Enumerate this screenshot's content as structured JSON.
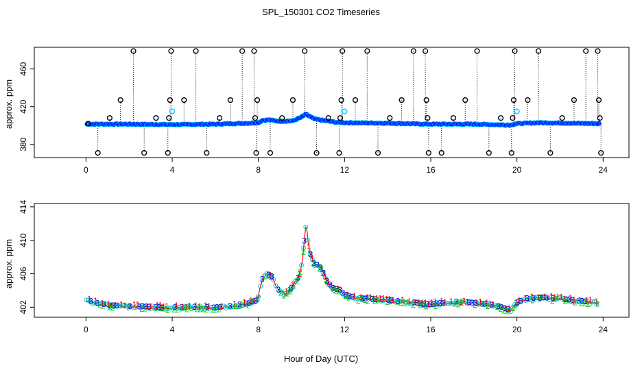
{
  "figure": {
    "title": "SPL_150301  CO2 Timeseries",
    "xlabel": "Hour of Day (UTC)"
  },
  "chart_data": [
    {
      "type": "scatter",
      "panel": "top",
      "title": "SPL_150301  CO2 Timeseries",
      "xlabel": "",
      "ylabel": "approx. ppm",
      "xlim": [
        -2.4,
        25.2
      ],
      "ylim": [
        366,
        483
      ],
      "xticks": [
        0,
        4,
        8,
        12,
        16,
        20,
        24
      ],
      "yticks": [
        380,
        420,
        460
      ],
      "grid": false,
      "baseline": [
        {
          "x": 0.0,
          "y": 401.5
        },
        {
          "x": 2.0,
          "y": 401.5
        },
        {
          "x": 4.0,
          "y": 401.0
        },
        {
          "x": 6.0,
          "y": 401.5
        },
        {
          "x": 7.6,
          "y": 402.5
        },
        {
          "x": 8.0,
          "y": 403.0
        },
        {
          "x": 8.2,
          "y": 405.5
        },
        {
          "x": 8.5,
          "y": 406.0
        },
        {
          "x": 9.0,
          "y": 404.5
        },
        {
          "x": 9.6,
          "y": 405.0
        },
        {
          "x": 10.0,
          "y": 409.0
        },
        {
          "x": 10.2,
          "y": 412.0
        },
        {
          "x": 10.6,
          "y": 407.0
        },
        {
          "x": 11.0,
          "y": 405.5
        },
        {
          "x": 11.6,
          "y": 403.5
        },
        {
          "x": 12.0,
          "y": 403.0
        },
        {
          "x": 14.0,
          "y": 402.5
        },
        {
          "x": 15.8,
          "y": 401.5
        },
        {
          "x": 16.0,
          "y": 401.5
        },
        {
          "x": 18.0,
          "y": 401.5
        },
        {
          "x": 19.7,
          "y": 400.5
        },
        {
          "x": 20.0,
          "y": 402.0
        },
        {
          "x": 21.0,
          "y": 403.0
        },
        {
          "x": 22.5,
          "y": 402.5
        },
        {
          "x": 23.8,
          "y": 402.0
        }
      ],
      "spikes": [
        {
          "x": 0.1,
          "y": 402
        },
        {
          "x": 0.55,
          "y": 371
        },
        {
          "x": 1.1,
          "y": 408
        },
        {
          "x": 1.6,
          "y": 427
        },
        {
          "x": 2.2,
          "y": 479
        },
        {
          "x": 2.7,
          "y": 371
        },
        {
          "x": 3.25,
          "y": 408
        },
        {
          "x": 3.8,
          "y": 371
        },
        {
          "x": 3.85,
          "y": 408
        },
        {
          "x": 3.9,
          "y": 427
        },
        {
          "x": 3.95,
          "y": 479
        },
        {
          "x": 4.55,
          "y": 427
        },
        {
          "x": 5.1,
          "y": 479
        },
        {
          "x": 5.6,
          "y": 371
        },
        {
          "x": 6.2,
          "y": 408
        },
        {
          "x": 6.7,
          "y": 427
        },
        {
          "x": 7.25,
          "y": 479
        },
        {
          "x": 7.8,
          "y": 479
        },
        {
          "x": 7.85,
          "y": 408
        },
        {
          "x": 7.9,
          "y": 371
        },
        {
          "x": 7.95,
          "y": 427
        },
        {
          "x": 8.55,
          "y": 371
        },
        {
          "x": 9.1,
          "y": 408
        },
        {
          "x": 9.6,
          "y": 427
        },
        {
          "x": 10.15,
          "y": 479
        },
        {
          "x": 10.7,
          "y": 371
        },
        {
          "x": 11.25,
          "y": 408
        },
        {
          "x": 11.75,
          "y": 371
        },
        {
          "x": 11.8,
          "y": 408
        },
        {
          "x": 11.85,
          "y": 427
        },
        {
          "x": 11.9,
          "y": 479
        },
        {
          "x": 12.5,
          "y": 427
        },
        {
          "x": 13.05,
          "y": 479
        },
        {
          "x": 13.55,
          "y": 371
        },
        {
          "x": 14.1,
          "y": 408
        },
        {
          "x": 14.65,
          "y": 427
        },
        {
          "x": 15.2,
          "y": 479
        },
        {
          "x": 15.75,
          "y": 479
        },
        {
          "x": 15.8,
          "y": 427
        },
        {
          "x": 15.85,
          "y": 408
        },
        {
          "x": 15.9,
          "y": 371
        },
        {
          "x": 16.5,
          "y": 371
        },
        {
          "x": 17.05,
          "y": 408
        },
        {
          "x": 17.6,
          "y": 427
        },
        {
          "x": 18.15,
          "y": 479
        },
        {
          "x": 18.7,
          "y": 371
        },
        {
          "x": 19.25,
          "y": 408
        },
        {
          "x": 19.75,
          "y": 371
        },
        {
          "x": 19.8,
          "y": 408
        },
        {
          "x": 19.85,
          "y": 427
        },
        {
          "x": 19.9,
          "y": 479
        },
        {
          "x": 20.5,
          "y": 427
        },
        {
          "x": 21.0,
          "y": 479
        },
        {
          "x": 21.55,
          "y": 371
        },
        {
          "x": 22.1,
          "y": 408
        },
        {
          "x": 22.65,
          "y": 427
        },
        {
          "x": 23.2,
          "y": 479
        },
        {
          "x": 23.75,
          "y": 479
        },
        {
          "x": 23.8,
          "y": 427
        },
        {
          "x": 23.85,
          "y": 408
        },
        {
          "x": 23.9,
          "y": 371
        }
      ],
      "cyan_points": [
        {
          "x": 4.0,
          "y": 415
        },
        {
          "x": 12.0,
          "y": 415
        },
        {
          "x": 20.0,
          "y": 415
        }
      ],
      "colors": {
        "baseline": "#0000ff",
        "outline": "#00ffff",
        "spike": "#000000",
        "highlight": "#00c8ff"
      }
    },
    {
      "type": "line",
      "panel": "bottom",
      "xlabel": "Hour of Day (UTC)",
      "ylabel": "approx. ppm",
      "xlim": [
        -2.4,
        25.2
      ],
      "ylim": [
        400.8,
        414.4
      ],
      "xticks": [
        0,
        4,
        8,
        12,
        16,
        20,
        24
      ],
      "yticks": [
        402,
        406,
        410,
        414
      ],
      "grid": false,
      "profile": [
        {
          "x": 0.0,
          "y": 402.8
        },
        {
          "x": 0.5,
          "y": 402.5
        },
        {
          "x": 1.0,
          "y": 402.2
        },
        {
          "x": 2.0,
          "y": 402.1
        },
        {
          "x": 3.0,
          "y": 402.0
        },
        {
          "x": 4.0,
          "y": 401.9
        },
        {
          "x": 5.0,
          "y": 402.0
        },
        {
          "x": 6.0,
          "y": 401.9
        },
        {
          "x": 7.0,
          "y": 402.2
        },
        {
          "x": 7.6,
          "y": 402.5
        },
        {
          "x": 7.95,
          "y": 402.8
        },
        {
          "x": 8.1,
          "y": 404.5
        },
        {
          "x": 8.2,
          "y": 405.5
        },
        {
          "x": 8.4,
          "y": 406.0
        },
        {
          "x": 8.65,
          "y": 405.6
        },
        {
          "x": 8.8,
          "y": 404.5
        },
        {
          "x": 9.0,
          "y": 403.8
        },
        {
          "x": 9.3,
          "y": 403.6
        },
        {
          "x": 9.6,
          "y": 404.5
        },
        {
          "x": 9.9,
          "y": 405.8
        },
        {
          "x": 10.05,
          "y": 407.5
        },
        {
          "x": 10.15,
          "y": 410.5
        },
        {
          "x": 10.22,
          "y": 412.0
        },
        {
          "x": 10.35,
          "y": 409.0
        },
        {
          "x": 10.55,
          "y": 407.2
        },
        {
          "x": 10.8,
          "y": 407.0
        },
        {
          "x": 11.0,
          "y": 406.2
        },
        {
          "x": 11.2,
          "y": 405.0
        },
        {
          "x": 11.5,
          "y": 404.2
        },
        {
          "x": 11.8,
          "y": 404.0
        },
        {
          "x": 12.0,
          "y": 403.5
        },
        {
          "x": 12.5,
          "y": 403.1
        },
        {
          "x": 13.0,
          "y": 403.0
        },
        {
          "x": 14.0,
          "y": 402.8
        },
        {
          "x": 15.0,
          "y": 402.6
        },
        {
          "x": 15.8,
          "y": 402.3
        },
        {
          "x": 16.0,
          "y": 402.3
        },
        {
          "x": 17.0,
          "y": 402.6
        },
        {
          "x": 18.0,
          "y": 402.5
        },
        {
          "x": 19.0,
          "y": 402.2
        },
        {
          "x": 19.7,
          "y": 401.6
        },
        {
          "x": 20.0,
          "y": 402.5
        },
        {
          "x": 20.5,
          "y": 403.0
        },
        {
          "x": 21.0,
          "y": 403.1
        },
        {
          "x": 22.0,
          "y": 403.0
        },
        {
          "x": 23.0,
          "y": 402.7
        },
        {
          "x": 23.8,
          "y": 402.5
        }
      ],
      "series": [
        {
          "name": "1",
          "color": "#ff0000",
          "offset": 0.25
        },
        {
          "name": "2",
          "color": "#00cc00",
          "offset": -0.25
        },
        {
          "name": "3",
          "color": "#0000ff",
          "offset": 0.05
        }
      ],
      "colors": {
        "line": "#ff0000",
        "points": "#00cccc",
        "overlay": "#0000ff"
      }
    }
  ]
}
